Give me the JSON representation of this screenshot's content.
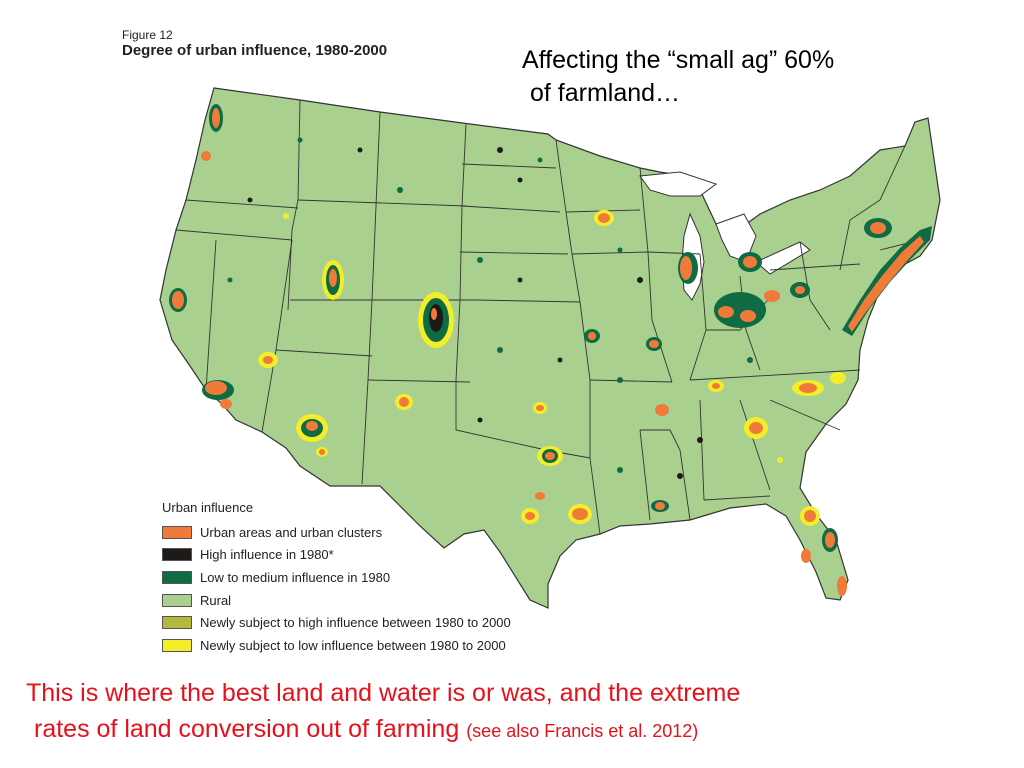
{
  "figure": {
    "label": "Figure 12",
    "title": "Degree of urban influence, 1980-2000"
  },
  "headline": {
    "line1": "Affecting the “small ag” 60%",
    "line2": "of farmland…"
  },
  "legend": {
    "title": "Urban influence",
    "items": [
      {
        "label": "Urban areas and urban clusters",
        "color": "#f07a3a"
      },
      {
        "label": "High influence in 1980*",
        "color": "#1e1a18"
      },
      {
        "label": "Low to medium influence in 1980",
        "color": "#0e6b43"
      },
      {
        "label": "Rural",
        "color": "#a9d08e"
      },
      {
        "label": "Newly subject to high influence between 1980 to 2000",
        "color": "#b4b83c"
      },
      {
        "label": "Newly subject to low influence between 1980 to 2000",
        "color": "#f4ee2a"
      }
    ]
  },
  "caption": {
    "line1": "This is where the best land and water is or was, and the extreme",
    "line2": "rates of land conversion out of farming",
    "citation": "(see also Francis et al. 2012)"
  },
  "colors": {
    "caption": "#e8101a",
    "rural": "#a9d08e",
    "borders": "#333333"
  }
}
